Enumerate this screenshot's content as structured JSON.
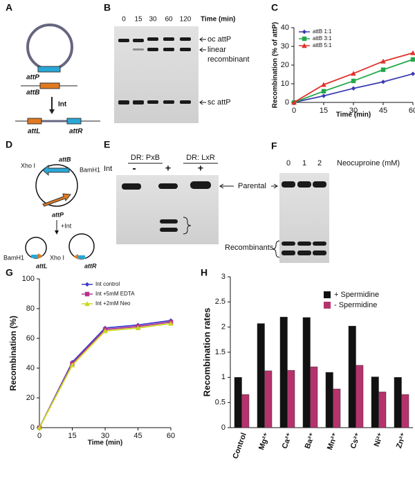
{
  "panels": {
    "labels": [
      "A",
      "B",
      "C",
      "D",
      "E",
      "F",
      "G",
      "H"
    ]
  },
  "panel_a": {
    "plasmid": "attP",
    "linear": "attB",
    "arrow": "Int",
    "left": "attL",
    "right": "attR"
  },
  "panel_b": {
    "lanes": [
      "0",
      "15",
      "30",
      "60",
      "120"
    ],
    "lane_title": "Time (min)",
    "bands": [
      "oc attP",
      "linear",
      "recombinant",
      "sc attP"
    ]
  },
  "panel_d": {
    "labels": [
      "Xho I",
      "attB",
      "BamH1",
      "attP",
      "+Int",
      "BamH1",
      "attL",
      "Xho I",
      "attR"
    ]
  },
  "panel_e": {
    "groups": [
      "DR: PxB",
      "DR: LxR"
    ],
    "row_label": "Int",
    "lanes": [
      "-",
      "+",
      "+"
    ],
    "bands": [
      "Parental",
      "Recombinants"
    ]
  },
  "panel_f": {
    "lanes": [
      "0",
      "1",
      "2"
    ],
    "title": "Neocuproine (mM)"
  },
  "chart_data": [
    {
      "type": "line",
      "x_label": "Time (min)",
      "y_label": "Recombination (% of attP)",
      "x": [
        0,
        15,
        30,
        45,
        60
      ],
      "xlim": [
        0,
        60
      ],
      "xticks": [
        0,
        15,
        30,
        45,
        60
      ],
      "ylim": [
        0,
        40
      ],
      "yticks": [
        0,
        10,
        20,
        30,
        40
      ],
      "legend": "upper left",
      "series": [
        {
          "name": "attB 1:1",
          "color": "#3b3bb0",
          "marker": "diamond",
          "values": [
            0,
            3.5,
            7.5,
            11,
            15.3
          ]
        },
        {
          "name": "attB 3:1",
          "color": "#23a84a",
          "marker": "square",
          "values": [
            0,
            6,
            11.5,
            17.5,
            23
          ]
        },
        {
          "name": "attB 5:1",
          "color": "#e0302a",
          "marker": "triangle",
          "values": [
            0,
            9.5,
            15.5,
            22,
            26.5
          ]
        }
      ]
    },
    {
      "type": "line",
      "x_label": "Time (min)",
      "y_label": "Recombination (%)",
      "x": [
        0,
        15,
        30,
        45,
        60
      ],
      "xlim": [
        0,
        60
      ],
      "xticks": [
        0,
        15,
        30,
        45,
        60
      ],
      "ylim": [
        0,
        100
      ],
      "yticks": [
        0,
        20,
        40,
        60,
        80,
        100
      ],
      "legend": "upper center",
      "series": [
        {
          "name": "Int control",
          "color": "#3b3bc8",
          "marker": "diamond",
          "values": [
            0,
            44,
            67,
            69,
            72
          ]
        },
        {
          "name": "Int +5mM EDTA",
          "color": "#b5338d",
          "marker": "square",
          "values": [
            0,
            43,
            66,
            68,
            71
          ]
        },
        {
          "name": "Int +2mM Neo",
          "color": "#c8d820",
          "marker": "triangle",
          "values": [
            0,
            42,
            65,
            67,
            70
          ]
        }
      ]
    },
    {
      "type": "bar",
      "y_label": "Recombination rates",
      "categories": [
        "Control",
        "Mg²⁺",
        "Ca²⁺",
        "Ba²⁺",
        "Mn²⁺",
        "Cs²⁺",
        "Ni²⁺",
        "Zn²⁺"
      ],
      "ylim": [
        0,
        3
      ],
      "yticks": [
        0,
        0.5,
        1,
        1.5,
        2,
        2.5,
        3
      ],
      "legend": "upper right",
      "series": [
        {
          "name": "+ Spermidine",
          "color": "#111111",
          "values": [
            1,
            2.07,
            2.2,
            2.19,
            1.1,
            2.02,
            1.01,
            1
          ]
        },
        {
          "name": "- Spermidine",
          "color": "#b5336d",
          "values": [
            0.66,
            1.13,
            1.14,
            1.21,
            0.77,
            1.24,
            0.71,
            0.66
          ]
        }
      ]
    }
  ]
}
